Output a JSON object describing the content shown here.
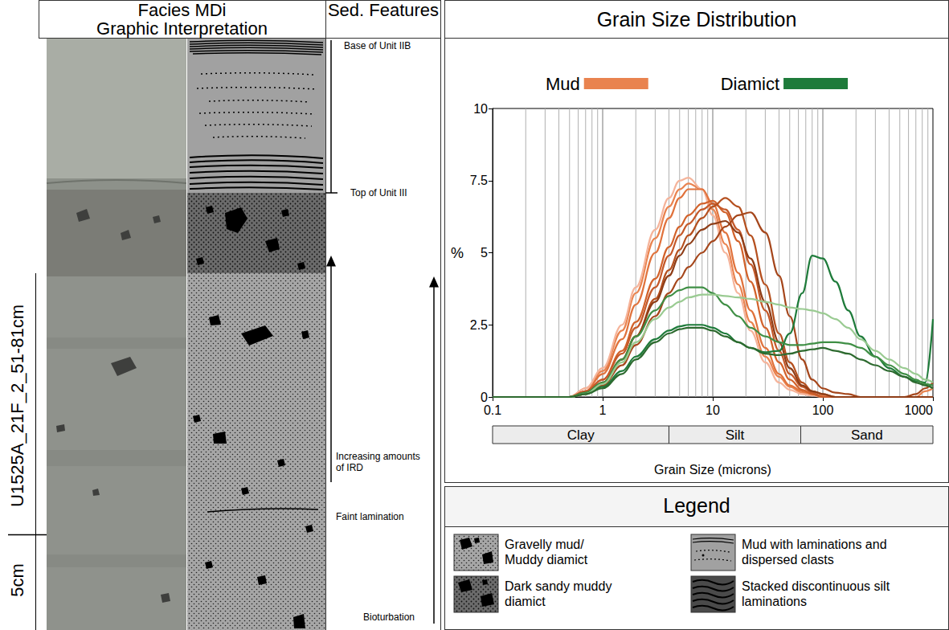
{
  "chart_data": {
    "type": "line",
    "title": "Grain Size Distribution",
    "xlabel": "Grain Size (microns)",
    "ylabel": "%",
    "x": [
      0.1,
      0.3,
      0.5,
      0.7,
      1,
      1.5,
      2,
      3,
      4,
      5,
      6,
      8,
      10,
      13,
      17,
      22,
      30,
      40,
      50,
      65,
      80,
      100,
      130,
      170,
      220,
      300,
      400,
      550,
      700,
      850,
      1000
    ],
    "series": [
      {
        "name": "Mud",
        "color": "#e9834f",
        "values": [
          0,
          0,
          0,
          0.3,
          0.9,
          2.3,
          3.6,
          5.5,
          6.6,
          7.2,
          7.4,
          7.2,
          6.5,
          5.3,
          3.9,
          2.6,
          1.4,
          0.7,
          0.35,
          0.15,
          0.1,
          0.05,
          0,
          0,
          0,
          0,
          0,
          0,
          0,
          0.2,
          0.3
        ]
      },
      {
        "name": "Mud",
        "color": "#f5b49b",
        "values": [
          0,
          0,
          0,
          0.3,
          1.0,
          2.5,
          3.8,
          5.8,
          6.9,
          7.5,
          7.6,
          7.2,
          6.3,
          5.0,
          3.6,
          2.3,
          1.2,
          0.5,
          0.25,
          0.1,
          0.05,
          0,
          0,
          0,
          0,
          0,
          0,
          0,
          0,
          0,
          0
        ]
      },
      {
        "name": "Mud",
        "color": "#e0723c",
        "values": [
          0,
          0,
          0,
          0.2,
          0.8,
          2.0,
          3.2,
          5.0,
          6.2,
          6.9,
          7.2,
          7.2,
          6.7,
          5.7,
          4.3,
          3.0,
          1.7,
          0.8,
          0.4,
          0.2,
          0.1,
          0,
          0,
          0,
          0,
          0,
          0,
          0,
          0,
          0,
          0
        ]
      },
      {
        "name": "Mud",
        "color": "#d2622b",
        "values": [
          0,
          0,
          0,
          0.2,
          0.6,
          1.6,
          2.6,
          4.1,
          5.2,
          5.9,
          6.3,
          6.7,
          6.8,
          6.4,
          5.4,
          4.0,
          2.4,
          1.2,
          0.6,
          0.25,
          0.1,
          0,
          0,
          0,
          0,
          0,
          0,
          0,
          0,
          0,
          0
        ]
      },
      {
        "name": "Mud",
        "color": "#c4592a",
        "values": [
          0,
          0,
          0,
          0.2,
          0.6,
          1.5,
          2.4,
          3.8,
          4.9,
          5.6,
          6.0,
          6.5,
          6.7,
          6.5,
          5.8,
          4.6,
          3.0,
          1.6,
          0.8,
          0.35,
          0.15,
          0,
          0,
          0,
          0,
          0,
          0,
          0,
          0,
          0,
          0
        ]
      },
      {
        "name": "Mud",
        "color": "#b5501f",
        "values": [
          0,
          0,
          0,
          0.1,
          0.5,
          1.3,
          2.1,
          3.4,
          4.4,
          5.1,
          5.6,
          6.2,
          6.6,
          6.9,
          6.6,
          5.6,
          3.9,
          2.2,
          1.2,
          0.5,
          0.2,
          0.1,
          0,
          0,
          0,
          0,
          0,
          0,
          0,
          0,
          0
        ]
      },
      {
        "name": "Mud",
        "color": "#a5461b",
        "values": [
          0,
          0,
          0,
          0.1,
          0.4,
          1.1,
          1.8,
          2.8,
          3.6,
          4.1,
          4.5,
          5.0,
          5.4,
          5.9,
          6.3,
          6.4,
          5.7,
          4.2,
          2.8,
          1.3,
          0.6,
          0.3,
          0.15,
          0.1,
          0,
          0,
          0,
          0,
          0.1,
          0.3,
          0.5
        ]
      },
      {
        "name": "Mud",
        "color": "#8e3d17",
        "values": [
          0,
          0,
          0,
          0.15,
          0.5,
          1.3,
          2.1,
          3.3,
          4.2,
          4.9,
          5.3,
          5.8,
          6.0,
          6.1,
          5.7,
          4.8,
          3.3,
          1.9,
          1.0,
          0.4,
          0.2,
          0.1,
          0,
          0,
          0,
          0,
          0,
          0,
          0,
          0,
          0
        ]
      },
      {
        "name": "Diamict",
        "color": "#1e7b3a",
        "values": [
          0,
          0,
          0,
          0.1,
          0.35,
          0.9,
          1.4,
          2.0,
          2.3,
          2.45,
          2.5,
          2.5,
          2.4,
          2.2,
          1.9,
          1.7,
          1.55,
          1.6,
          2.2,
          3.6,
          4.9,
          4.8,
          4.0,
          3.0,
          2.1,
          1.4,
          1.0,
          0.7,
          0.55,
          0.5,
          2.7
        ]
      },
      {
        "name": "Diamict",
        "color": "#3f8f45",
        "values": [
          0,
          0,
          0,
          0.15,
          0.5,
          1.3,
          2.1,
          3.0,
          3.5,
          3.7,
          3.8,
          3.8,
          3.6,
          3.2,
          2.8,
          2.4,
          2.1,
          1.9,
          1.8,
          1.8,
          1.85,
          1.9,
          1.9,
          1.85,
          1.7,
          1.4,
          1.1,
          0.8,
          0.6,
          0.45,
          0.4
        ]
      },
      {
        "name": "Diamict",
        "color": "#9acb92",
        "values": [
          0,
          0,
          0,
          0.1,
          0.45,
          1.2,
          1.9,
          2.7,
          3.1,
          3.3,
          3.45,
          3.55,
          3.55,
          3.5,
          3.45,
          3.4,
          3.3,
          3.2,
          3.1,
          3.05,
          3.0,
          2.9,
          2.7,
          2.4,
          2.0,
          1.6,
          1.3,
          1.0,
          0.8,
          0.6,
          0.5
        ]
      },
      {
        "name": "Diamict",
        "color": "#2d6a2f",
        "values": [
          0,
          0,
          0,
          0.1,
          0.3,
          0.8,
          1.3,
          1.9,
          2.2,
          2.35,
          2.4,
          2.4,
          2.3,
          2.1,
          1.9,
          1.7,
          1.5,
          1.45,
          1.5,
          1.6,
          1.65,
          1.7,
          1.6,
          1.5,
          1.3,
          1.1,
          0.9,
          0.7,
          0.5,
          0.4,
          0.3
        ]
      }
    ],
    "xlim": [
      0.1,
      1000
    ],
    "xticks": [
      0.1,
      1,
      10,
      100,
      1000
    ],
    "ylim": [
      0,
      10
    ],
    "yticks": [
      0,
      2.5,
      5,
      7.5,
      10
    ],
    "log": "x",
    "grid": true,
    "legend": "top",
    "size_classes": [
      {
        "label": "Clay",
        "from": 0.1,
        "to": 4
      },
      {
        "label": "Silt",
        "from": 4,
        "to": 63
      },
      {
        "label": "Sand",
        "from": 63,
        "to": 1000
      }
    ]
  },
  "core_panel": {
    "header": [
      "Facies MDi",
      "Graphic Interpretation"
    ],
    "features_header": "Sed. Features",
    "core_label": "U1525A_21F_2_51-81cm",
    "scale_label": "5cm",
    "features": [
      "Base of Unit IIB",
      "Top of Unit III",
      "Increasing amounts of IRD",
      "Faint lamination",
      "Bioturbation"
    ]
  },
  "legend_panel": {
    "title": "Legend",
    "items": [
      "Gravelly mud/ Muddy diamict",
      "Mud with laminations and dispersed clasts",
      "Dark sandy muddy diamict",
      "Stacked discontinuous silt laminations"
    ]
  }
}
